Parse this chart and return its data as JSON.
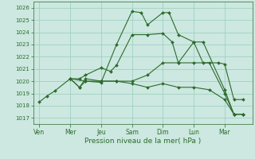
{
  "xlabel": "Pression niveau de la mer( hPa )",
  "background_color": "#cce8e0",
  "grid_color": "#99ccbb",
  "line_color": "#2d6b2d",
  "x_tick_labels": [
    "Ven",
    "Mer",
    "Jeu",
    "Sam",
    "Dim",
    "Lun",
    "Mar"
  ],
  "x_tick_positions": [
    0,
    1,
    2,
    3,
    4,
    5,
    6
  ],
  "ylim": [
    1016.5,
    1026.5
  ],
  "yticks": [
    1017,
    1018,
    1019,
    1020,
    1021,
    1022,
    1023,
    1024,
    1025,
    1026
  ],
  "lines": [
    {
      "x": [
        0.0,
        0.25,
        0.5,
        1.0,
        1.5,
        2.0,
        2.5,
        3.0,
        3.3,
        3.5,
        4.0,
        4.2,
        4.5,
        5.0,
        5.3,
        6.0,
        6.3,
        6.6
      ],
      "y": [
        1018.3,
        1018.8,
        1019.2,
        1020.2,
        1020.0,
        1019.9,
        1023.0,
        1025.7,
        1025.6,
        1024.6,
        1025.6,
        1025.6,
        1023.8,
        1023.2,
        1023.2,
        1019.3,
        1017.3,
        1017.3
      ]
    },
    {
      "x": [
        1.0,
        1.3,
        1.5,
        2.0,
        2.5,
        3.0,
        3.5,
        4.0,
        4.5,
        5.0,
        5.5,
        6.0,
        6.3,
        6.6
      ],
      "y": [
        1020.2,
        1019.5,
        1020.2,
        1020.0,
        1020.0,
        1020.0,
        1020.5,
        1021.5,
        1021.5,
        1021.5,
        1021.5,
        1019.0,
        1017.3,
        1017.3
      ]
    },
    {
      "x": [
        1.0,
        1.3,
        1.5,
        2.0,
        2.5,
        3.0,
        3.5,
        4.0,
        4.5,
        5.0,
        5.5,
        6.0,
        6.3,
        6.6
      ],
      "y": [
        1020.2,
        1019.5,
        1020.0,
        1020.0,
        1020.0,
        1019.8,
        1019.5,
        1019.8,
        1019.5,
        1019.5,
        1019.3,
        1018.5,
        1017.3,
        1017.3
      ]
    },
    {
      "x": [
        1.0,
        1.3,
        1.5,
        2.0,
        2.3,
        2.5,
        3.0,
        3.5,
        4.0,
        4.3,
        4.5,
        5.0,
        5.3,
        5.8,
        6.0,
        6.3,
        6.6
      ],
      "y": [
        1020.2,
        1020.2,
        1020.5,
        1021.1,
        1020.8,
        1021.3,
        1023.8,
        1023.8,
        1023.9,
        1023.2,
        1021.5,
        1023.2,
        1021.5,
        1021.5,
        1021.4,
        1018.5,
        1018.5
      ]
    }
  ]
}
